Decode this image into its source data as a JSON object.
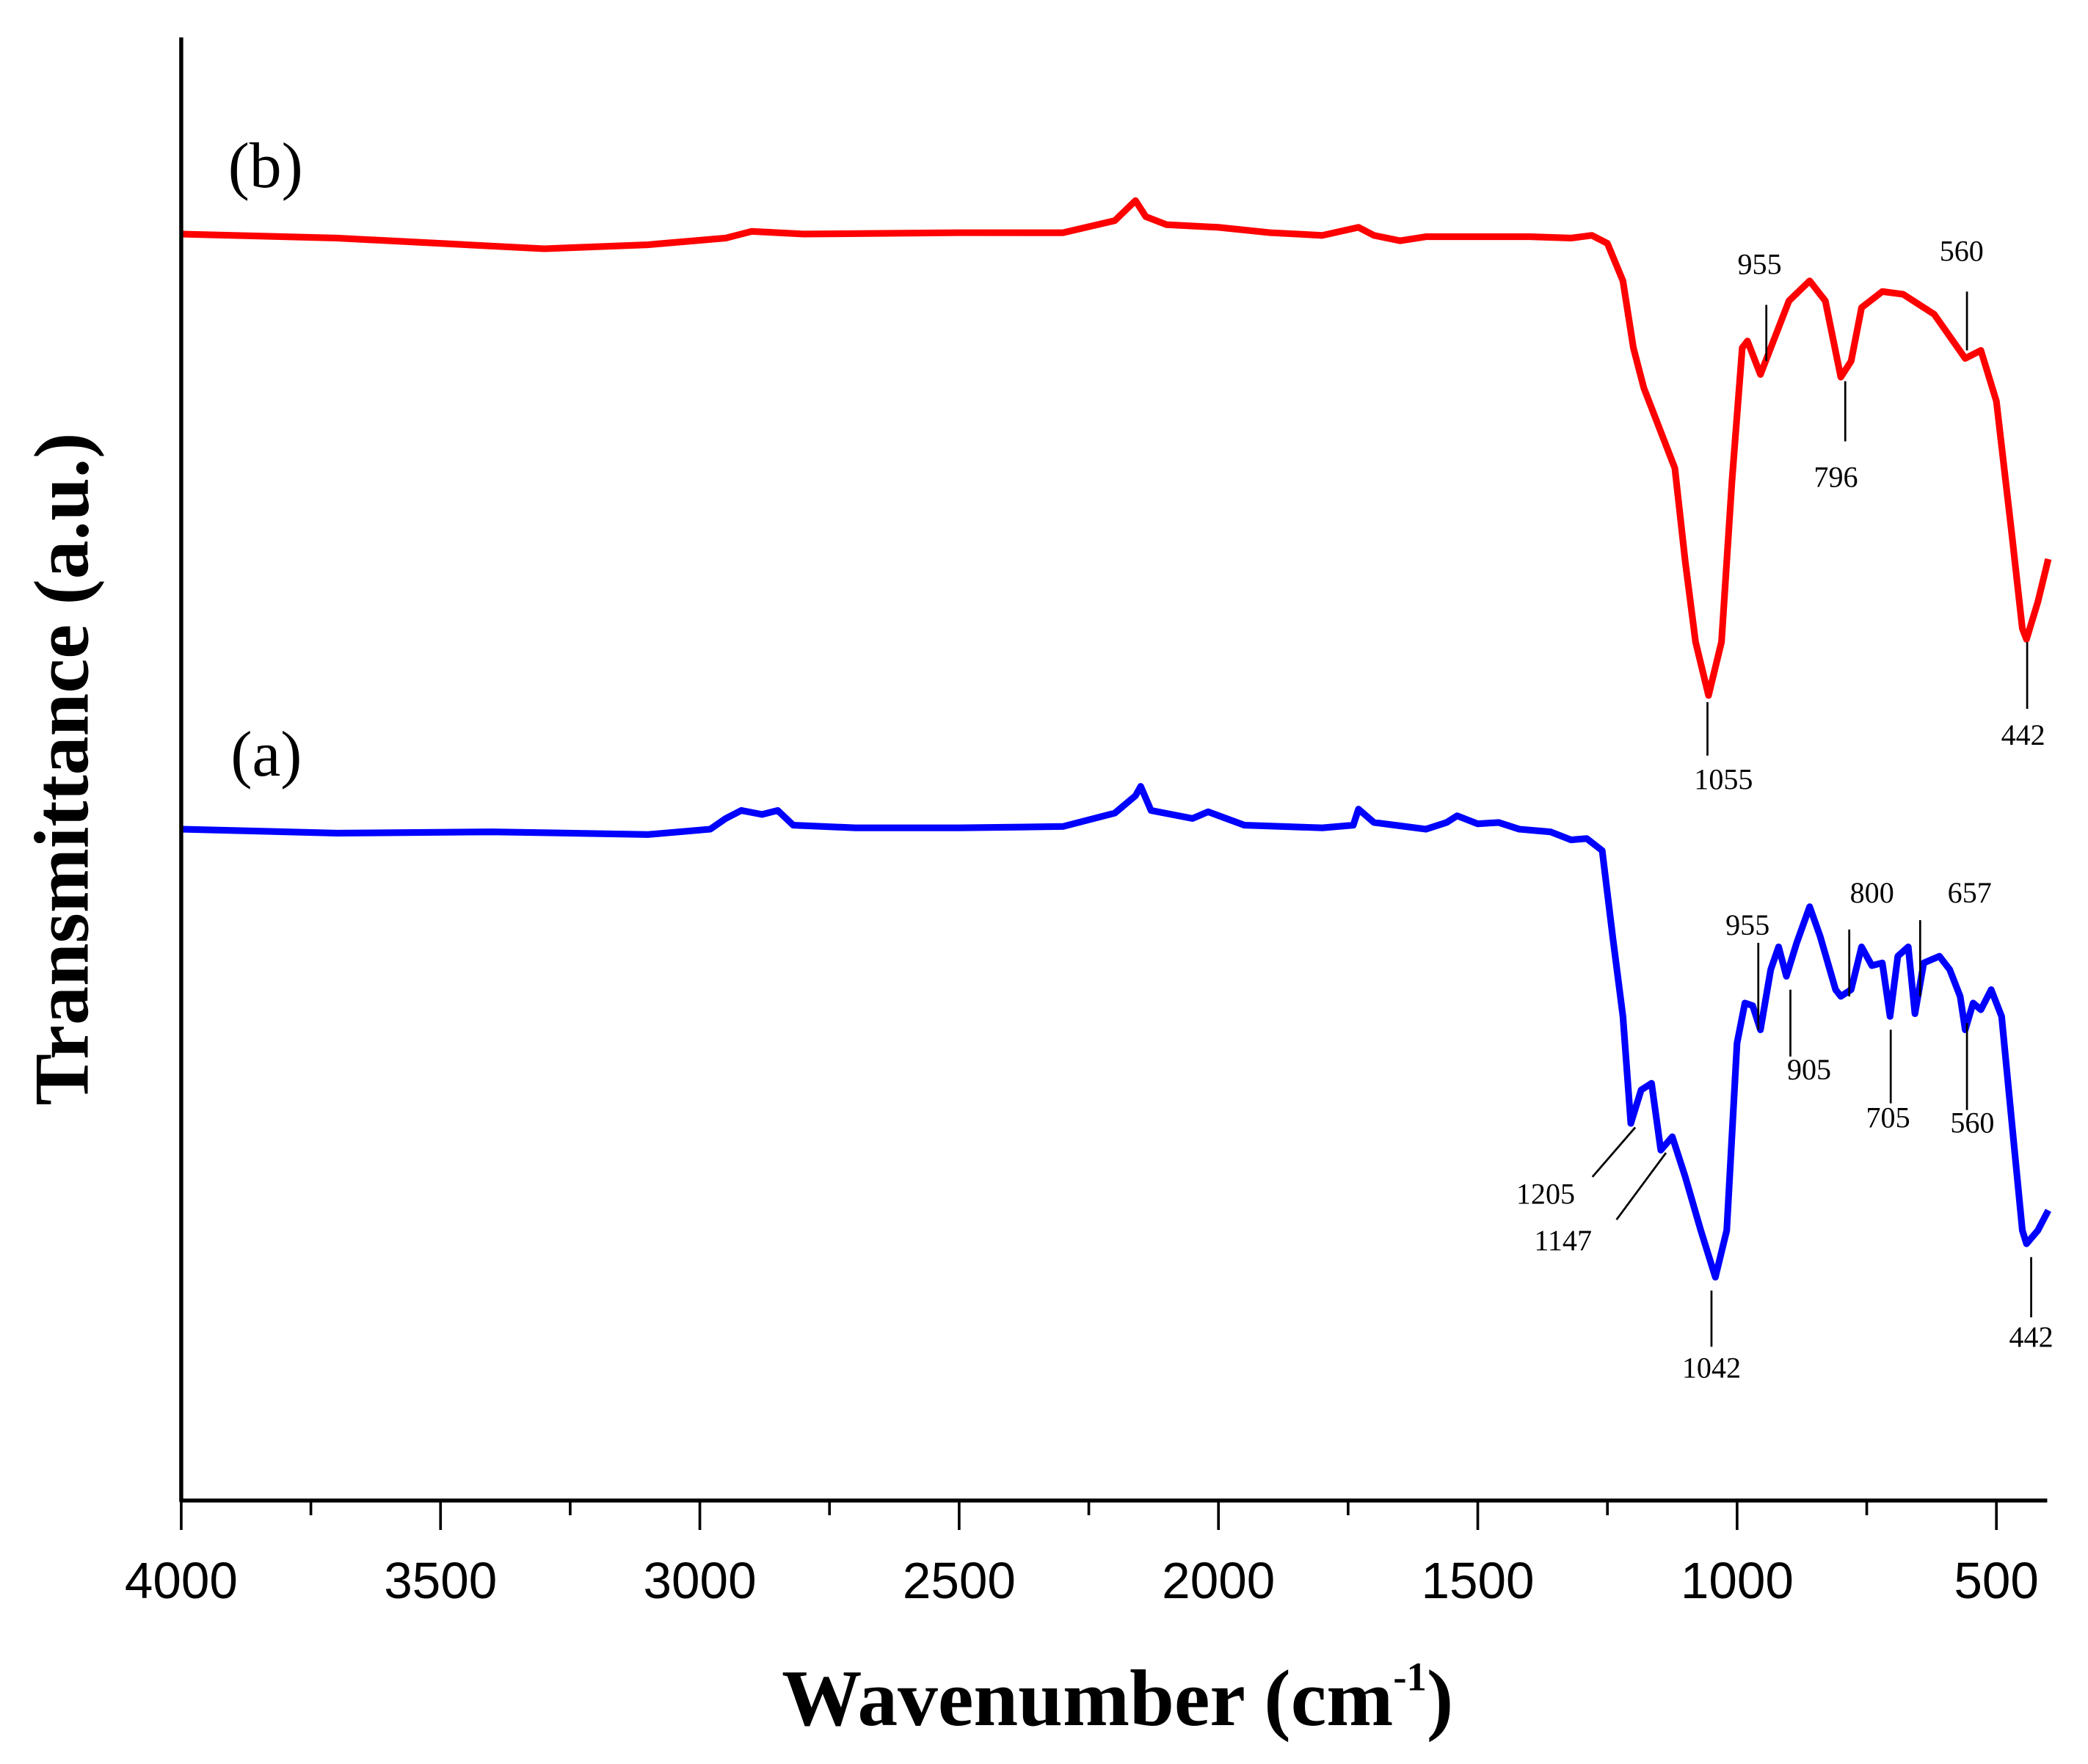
{
  "chart_data": {
    "type": "line",
    "title": "",
    "xlabel": "Wavenumber (cm",
    "xlabel_sup": "-1",
    "xlabel_close": ")",
    "ylabel": "Transmittance (a.u.)",
    "xlim": [
      4000,
      400
    ],
    "ylim": [
      0,
      109.4
    ],
    "x_ticks": [
      4000,
      3500,
      3000,
      2500,
      2000,
      1500,
      1000,
      500
    ],
    "x_tick_labels": [
      "4000",
      "3500",
      "3000",
      "2500",
      "2000",
      "1500",
      "1000",
      "500"
    ],
    "x_minor_ticks": [
      3750,
      3250,
      2750,
      2250,
      1750,
      1250,
      750
    ],
    "grid": false,
    "series": [
      {
        "name": "(b)",
        "color": "#ff0000",
        "points": [
          [
            4000,
            94.7
          ],
          [
            3700,
            94.4
          ],
          [
            3500,
            94.0
          ],
          [
            3300,
            93.6
          ],
          [
            3100,
            93.9
          ],
          [
            2950,
            94.4
          ],
          [
            2900,
            94.9
          ],
          [
            2800,
            94.7
          ],
          [
            2500,
            94.8
          ],
          [
            2300,
            94.8
          ],
          [
            2200,
            95.7
          ],
          [
            2160,
            97.2
          ],
          [
            2140,
            96.0
          ],
          [
            2100,
            95.4
          ],
          [
            2000,
            95.2
          ],
          [
            1900,
            94.8
          ],
          [
            1800,
            94.6
          ],
          [
            1730,
            95.2
          ],
          [
            1700,
            94.6
          ],
          [
            1650,
            94.2
          ],
          [
            1600,
            94.5
          ],
          [
            1400,
            94.5
          ],
          [
            1320,
            94.4
          ],
          [
            1280,
            94.6
          ],
          [
            1250,
            94.0
          ],
          [
            1220,
            91.2
          ],
          [
            1200,
            86.2
          ],
          [
            1180,
            83.2
          ],
          [
            1150,
            80.2
          ],
          [
            1120,
            77.2
          ],
          [
            1100,
            70.2
          ],
          [
            1080,
            64.2
          ],
          [
            1055,
            60.2
          ],
          [
            1030,
            64.2
          ],
          [
            1010,
            76.2
          ],
          [
            990,
            86.2
          ],
          [
            980,
            86.7
          ],
          [
            955,
            84.2
          ],
          [
            930,
            86.7
          ],
          [
            900,
            89.7
          ],
          [
            860,
            91.2
          ],
          [
            830,
            89.7
          ],
          [
            800,
            84.0
          ],
          [
            780,
            85.2
          ],
          [
            760,
            89.2
          ],
          [
            720,
            90.4
          ],
          [
            680,
            90.2
          ],
          [
            620,
            88.7
          ],
          [
            560,
            85.4
          ],
          [
            530,
            86.0
          ],
          [
            500,
            82.2
          ],
          [
            470,
            72.2
          ],
          [
            450,
            65.2
          ],
          [
            442,
            64.4
          ],
          [
            420,
            67.2
          ],
          [
            400,
            70.4
          ]
        ],
        "annotations": [
          "955",
          "796",
          "560",
          "1055",
          "442"
        ]
      },
      {
        "name": "(a)",
        "color": "#0000ff",
        "points": [
          [
            4000,
            50.2
          ],
          [
            3700,
            49.9
          ],
          [
            3400,
            50.0
          ],
          [
            3100,
            49.8
          ],
          [
            2980,
            50.2
          ],
          [
            2950,
            51.0
          ],
          [
            2920,
            51.6
          ],
          [
            2880,
            51.3
          ],
          [
            2850,
            51.6
          ],
          [
            2820,
            50.5
          ],
          [
            2700,
            50.3
          ],
          [
            2500,
            50.3
          ],
          [
            2300,
            50.4
          ],
          [
            2200,
            51.4
          ],
          [
            2160,
            52.7
          ],
          [
            2150,
            53.4
          ],
          [
            2130,
            51.6
          ],
          [
            2050,
            51.0
          ],
          [
            2020,
            51.5
          ],
          [
            1950,
            50.5
          ],
          [
            1800,
            50.3
          ],
          [
            1740,
            50.5
          ],
          [
            1730,
            51.7
          ],
          [
            1700,
            50.7
          ],
          [
            1600,
            50.2
          ],
          [
            1560,
            50.7
          ],
          [
            1540,
            51.2
          ],
          [
            1500,
            50.6
          ],
          [
            1460,
            50.7
          ],
          [
            1420,
            50.2
          ],
          [
            1360,
            50.0
          ],
          [
            1320,
            49.4
          ],
          [
            1290,
            49.5
          ],
          [
            1260,
            48.6
          ],
          [
            1240,
            42.2
          ],
          [
            1220,
            36.2
          ],
          [
            1205,
            28.2
          ],
          [
            1185,
            30.7
          ],
          [
            1165,
            31.2
          ],
          [
            1147,
            26.2
          ],
          [
            1125,
            27.2
          ],
          [
            1100,
            24.2
          ],
          [
            1070,
            20.2
          ],
          [
            1042,
            16.7
          ],
          [
            1020,
            20.2
          ],
          [
            1000,
            34.2
          ],
          [
            985,
            37.2
          ],
          [
            970,
            37.0
          ],
          [
            955,
            35.2
          ],
          [
            935,
            39.7
          ],
          [
            920,
            41.4
          ],
          [
            905,
            39.2
          ],
          [
            885,
            41.7
          ],
          [
            860,
            44.4
          ],
          [
            840,
            42.2
          ],
          [
            810,
            38.2
          ],
          [
            800,
            37.7
          ],
          [
            780,
            38.2
          ],
          [
            760,
            41.4
          ],
          [
            740,
            40.0
          ],
          [
            720,
            40.2
          ],
          [
            705,
            36.2
          ],
          [
            690,
            40.7
          ],
          [
            670,
            41.4
          ],
          [
            657,
            36.4
          ],
          [
            640,
            40.2
          ],
          [
            610,
            40.7
          ],
          [
            590,
            39.7
          ],
          [
            570,
            37.7
          ],
          [
            560,
            35.2
          ],
          [
            545,
            37.2
          ],
          [
            530,
            36.7
          ],
          [
            510,
            38.2
          ],
          [
            490,
            36.2
          ],
          [
            470,
            28.2
          ],
          [
            450,
            20.2
          ],
          [
            442,
            19.2
          ],
          [
            420,
            20.2
          ],
          [
            400,
            21.7
          ]
        ],
        "annotations": [
          "1205",
          "1147",
          "1042",
          "955",
          "905",
          "800",
          "705",
          "657",
          "560",
          "442"
        ]
      }
    ]
  }
}
